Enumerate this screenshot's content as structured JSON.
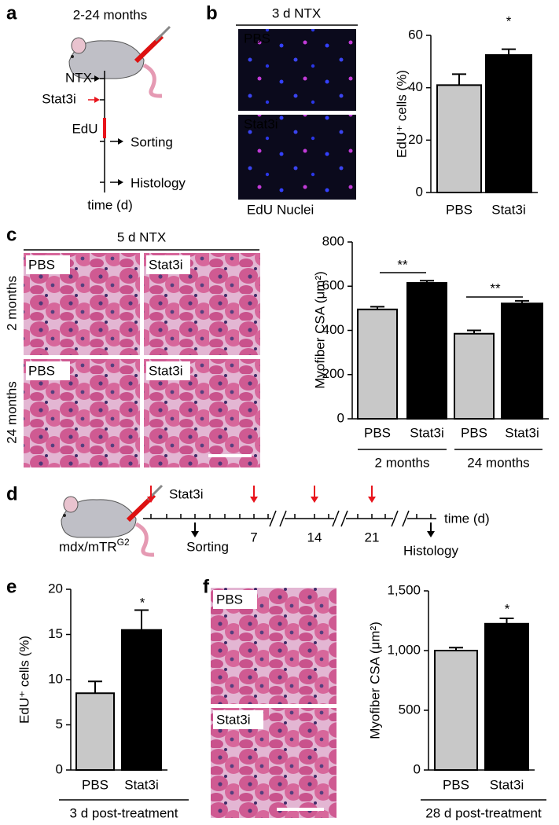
{
  "panel_labels": [
    "a",
    "b",
    "c",
    "d",
    "e",
    "f"
  ],
  "a": {
    "age": "2-24 months",
    "steps": [
      "NTX",
      "Stat3i",
      "EdU",
      "Sorting",
      "Histology"
    ],
    "axis_label": "time (d)"
  },
  "b": {
    "title": "3 d NTX",
    "image_labels": [
      "PBS",
      "Stat3i"
    ],
    "stains": [
      "EdU",
      "Nuclei"
    ]
  },
  "c": {
    "title": "5 d NTX",
    "image_labels": [
      "PBS",
      "Stat3i",
      "PBS",
      "Stat3i"
    ],
    "row_labels": [
      "2 months",
      "24 months"
    ]
  },
  "d": {
    "treatment": "Stat3i",
    "model": "mdx/mTR",
    "model_sup": "G2",
    "days": [
      7,
      14,
      21
    ],
    "events": [
      "Sorting",
      "Histology"
    ],
    "axis_label": "time (d)"
  },
  "f": {
    "image_labels": [
      "PBS",
      "Stat3i"
    ]
  },
  "chart_data": [
    {
      "type": "bar",
      "ylabel": "EdU⁺ cells (%)",
      "categories": [
        "PBS",
        "Stat3i"
      ],
      "values": [
        41,
        52.5
      ],
      "errors": [
        4.2,
        2.2
      ],
      "colors": [
        "#c8c8c8",
        "#000000"
      ],
      "ylim": [
        0,
        60
      ],
      "yticks": [
        0,
        20,
        40,
        60
      ],
      "annotations": [
        "*"
      ]
    },
    {
      "type": "bar",
      "ylabel": "Myofiber CSA (μm²)",
      "categories": [
        "PBS",
        "Stat3i",
        "PBS",
        "Stat3i"
      ],
      "values": [
        495,
        615,
        385,
        522
      ],
      "errors": [
        12,
        10,
        15,
        12
      ],
      "colors": [
        "#c8c8c8",
        "#000000",
        "#c8c8c8",
        "#000000"
      ],
      "ylim": [
        0,
        800
      ],
      "yticks": [
        0,
        200,
        400,
        600,
        800
      ],
      "annotations": [
        "**",
        "**"
      ],
      "group_labels": [
        "2 months",
        "24 months"
      ]
    },
    {
      "type": "bar",
      "ylabel": "EdU⁺ cells (%)",
      "xlabel": "3 d post-treatment",
      "categories": [
        "PBS",
        "Stat3i"
      ],
      "values": [
        8.5,
        15.5
      ],
      "errors": [
        1.3,
        2.2
      ],
      "colors": [
        "#c8c8c8",
        "#000000"
      ],
      "ylim": [
        0,
        20
      ],
      "yticks": [
        0,
        5,
        10,
        15,
        20
      ],
      "annotations": [
        "*"
      ]
    },
    {
      "type": "bar",
      "ylabel": "Myofiber CSA (μm²)",
      "xlabel": "28 d post-treatment",
      "categories": [
        "PBS",
        "Stat3i"
      ],
      "values": [
        1000,
        1225
      ],
      "errors": [
        25,
        45
      ],
      "colors": [
        "#c8c8c8",
        "#000000"
      ],
      "ylim": [
        0,
        1500
      ],
      "yticks": [
        0,
        500,
        {
          "value": 1000,
          "label": "1,000"
        },
        {
          "value": 1500,
          "label": "1,500"
        }
      ],
      "annotations": [
        "*"
      ]
    }
  ]
}
